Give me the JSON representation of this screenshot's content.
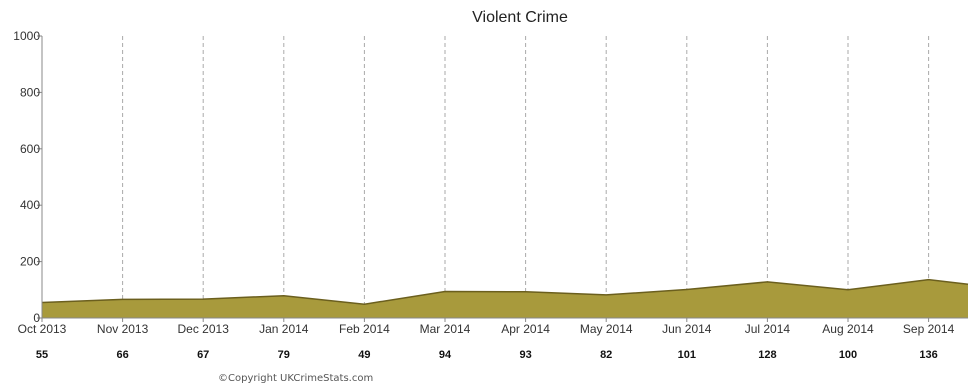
{
  "chart_data": {
    "type": "area",
    "title": "Violent Crime",
    "xlabel": "",
    "ylabel": "",
    "categories": [
      "Oct 2013",
      "Nov 2013",
      "Dec 2013",
      "Jan 2014",
      "Feb 2014",
      "Mar 2014",
      "Apr 2014",
      "May 2014",
      "Jun 2014",
      "Jul 2014",
      "Aug 2014",
      "Sep 2014"
    ],
    "values": [
      55,
      66,
      67,
      79,
      49,
      94,
      93,
      82,
      101,
      128,
      100,
      136
    ],
    "value_labels": [
      "55",
      "66",
      "67",
      "79",
      "49",
      "94",
      "93",
      "82",
      "101",
      "128",
      "100",
      "136"
    ],
    "trailing_value": 120,
    "ylim": [
      0,
      1000
    ],
    "yticks": [
      "0",
      "200",
      "400",
      "600",
      "800",
      "1000"
    ],
    "ytick_values": [
      0,
      200,
      400,
      600,
      800,
      1000
    ],
    "grid": "vertical dashed",
    "legend": "none",
    "colors": {
      "fill": "#a89a3c",
      "line": "#6b5f1e",
      "grid": "#aaaaaa",
      "axis": "#888888"
    }
  },
  "copyright": "©Copyright UKCrimeStats.com"
}
